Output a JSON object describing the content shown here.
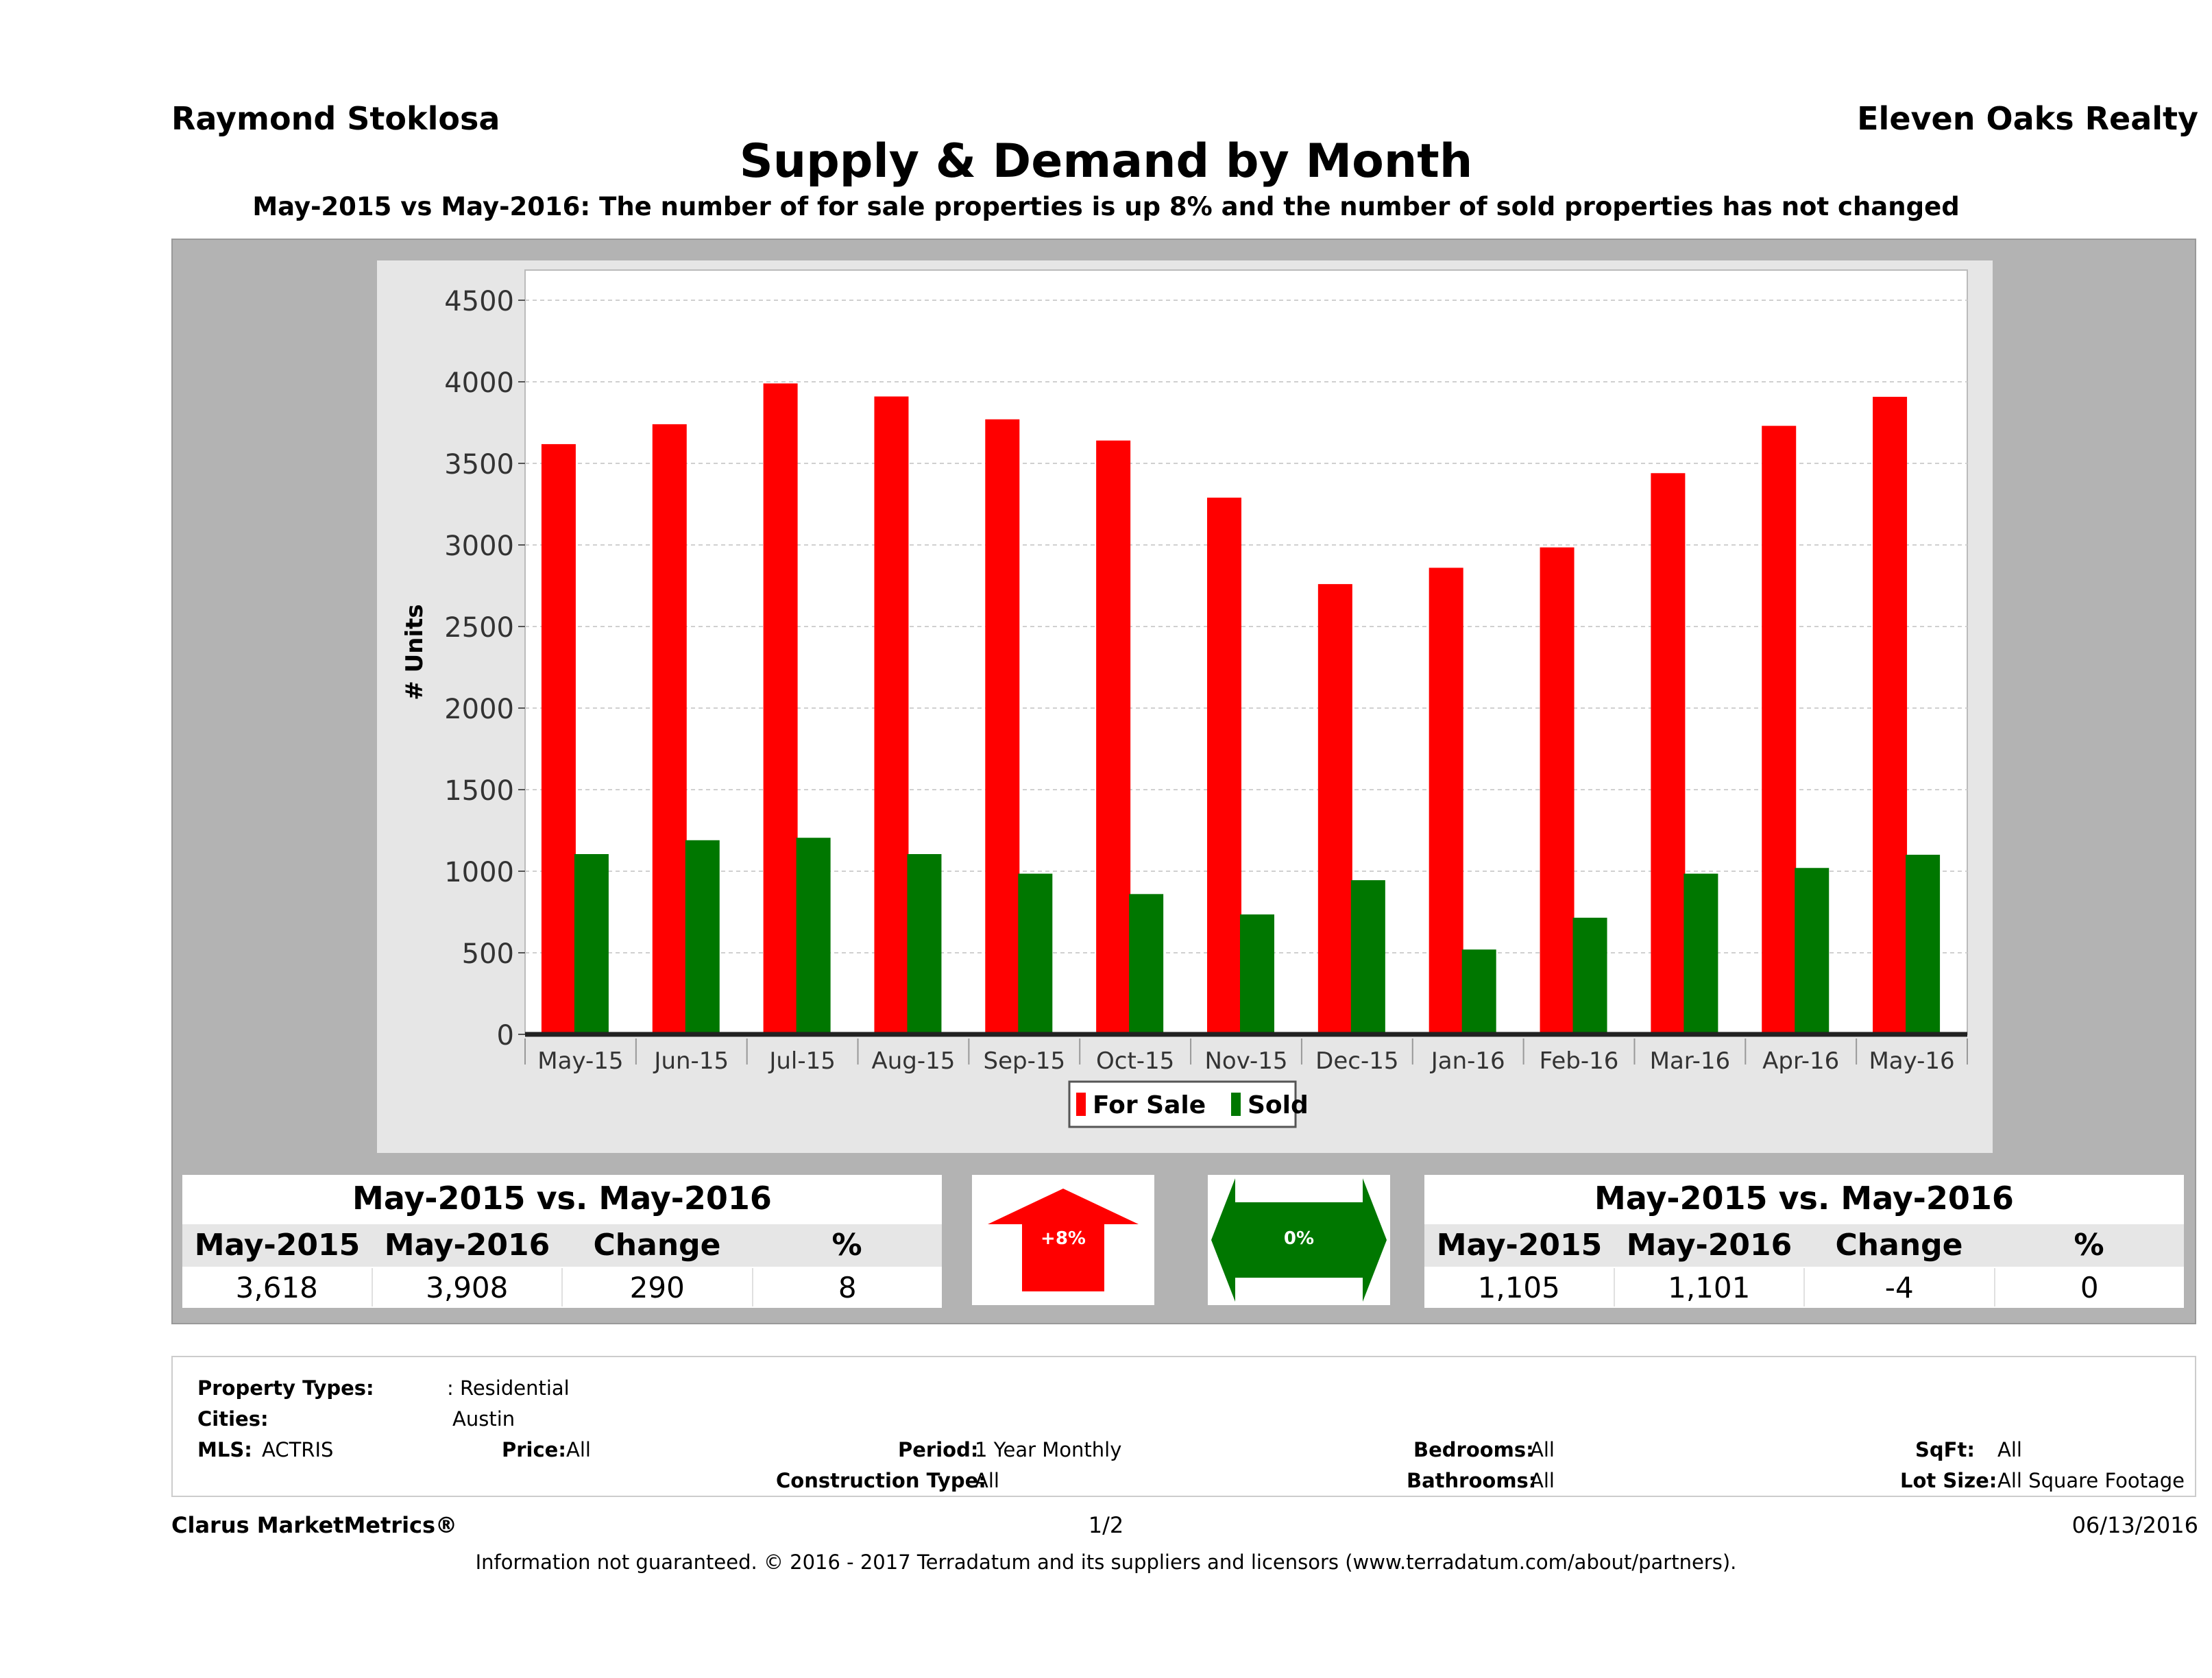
{
  "header": {
    "agent": "Raymond Stoklosa",
    "company": "Eleven Oaks Realty",
    "title": "Supply & Demand by Month",
    "subtitle": "May-2015 vs May-2016: The number of for sale properties is up 8% and the number of sold properties has not changed"
  },
  "chart_data": {
    "type": "bar",
    "categories": [
      "May-15",
      "Jun-15",
      "Jul-15",
      "Aug-15",
      "Sep-15",
      "Oct-15",
      "Nov-15",
      "Dec-15",
      "Jan-16",
      "Feb-16",
      "Mar-16",
      "Apr-16",
      "May-16"
    ],
    "series": [
      {
        "name": "For Sale",
        "color": "#ff0000",
        "values": [
          3618,
          3740,
          3990,
          3910,
          3770,
          3640,
          3290,
          2760,
          2860,
          2985,
          3440,
          3730,
          3908
        ]
      },
      {
        "name": "Sold",
        "color": "#007700",
        "values": [
          1105,
          1190,
          1205,
          1105,
          985,
          860,
          735,
          945,
          520,
          715,
          985,
          1020,
          1101
        ]
      }
    ],
    "ylabel": "# Units",
    "xlabel": "",
    "ylim": [
      0,
      4500
    ],
    "yticks": [
      "0",
      "500",
      "1000",
      "1500",
      "2000",
      "2500",
      "3000",
      "3500",
      "4000",
      "4500"
    ],
    "grid": true,
    "legend_position": "bottom"
  },
  "for_sale_summary": {
    "title": "May-2015 vs. May-2016",
    "headers": [
      "May-2015",
      "May-2016",
      "Change",
      "%"
    ],
    "values": [
      "3,618",
      "3,908",
      "290",
      "8"
    ]
  },
  "sold_summary": {
    "title": "May-2015 vs. May-2016",
    "headers": [
      "May-2015",
      "May-2016",
      "Change",
      "%"
    ],
    "values": [
      "1,105",
      "1,101",
      "-4",
      "0"
    ]
  },
  "indicators": {
    "for_sale_change": "+8%",
    "for_sale_color": "#ff0000",
    "sold_change": "0%",
    "sold_color": "#007700"
  },
  "details": {
    "property_types_label": "Property Types:",
    "property_types_value": ": Residential",
    "cities_label": "Cities:",
    "cities_value": "Austin",
    "mls_label": "MLS:",
    "mls_value": "ACTRIS",
    "price_label": "Price:",
    "price_value": "All",
    "period_label": "Period:",
    "period_value": "1 Year Monthly",
    "construction_label": "Construction Type:",
    "construction_value": "All",
    "bedrooms_label": "Bedrooms:",
    "bedrooms_value": "All",
    "bathrooms_label": "Bathrooms:",
    "bathrooms_value": "All",
    "sqft_label": "SqFt:",
    "sqft_value": "All",
    "lotsize_label": "Lot Size:",
    "lotsize_value": "All Square Footage"
  },
  "footer": {
    "brand": "Clarus MarketMetrics®",
    "page": "1/2",
    "date": "06/13/2016",
    "disclaimer": "Information not guaranteed. © 2016 - 2017 Terradatum and its suppliers and licensors (www.terradatum.com/about/partners)."
  }
}
